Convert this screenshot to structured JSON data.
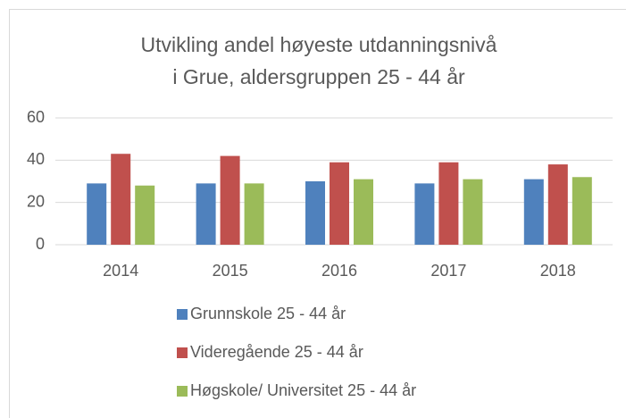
{
  "chart_data": {
    "type": "bar",
    "title": [
      "Utvikling andel høyeste utdanningsnivå",
      "i Grue, aldersgruppen 25 - 44 år"
    ],
    "categories": [
      "2014",
      "2015",
      "2016",
      "2017",
      "2018"
    ],
    "series": [
      {
        "name": "Grunnskole 25 - 44 år",
        "color": "#4f81bd",
        "values": [
          29,
          29,
          30,
          29,
          31
        ]
      },
      {
        "name": "Videregående 25 - 44 år",
        "color": "#c0504d",
        "values": [
          43,
          42,
          39,
          39,
          38
        ]
      },
      {
        "name": "Høgskole/ Universitet 25 - 44 år",
        "color": "#9bbb59",
        "values": [
          28,
          29,
          31,
          31,
          32
        ]
      }
    ],
    "ylim": [
      0,
      60
    ],
    "yticks": [
      0,
      20,
      40,
      60
    ],
    "grid": true,
    "legend": "bottom"
  }
}
